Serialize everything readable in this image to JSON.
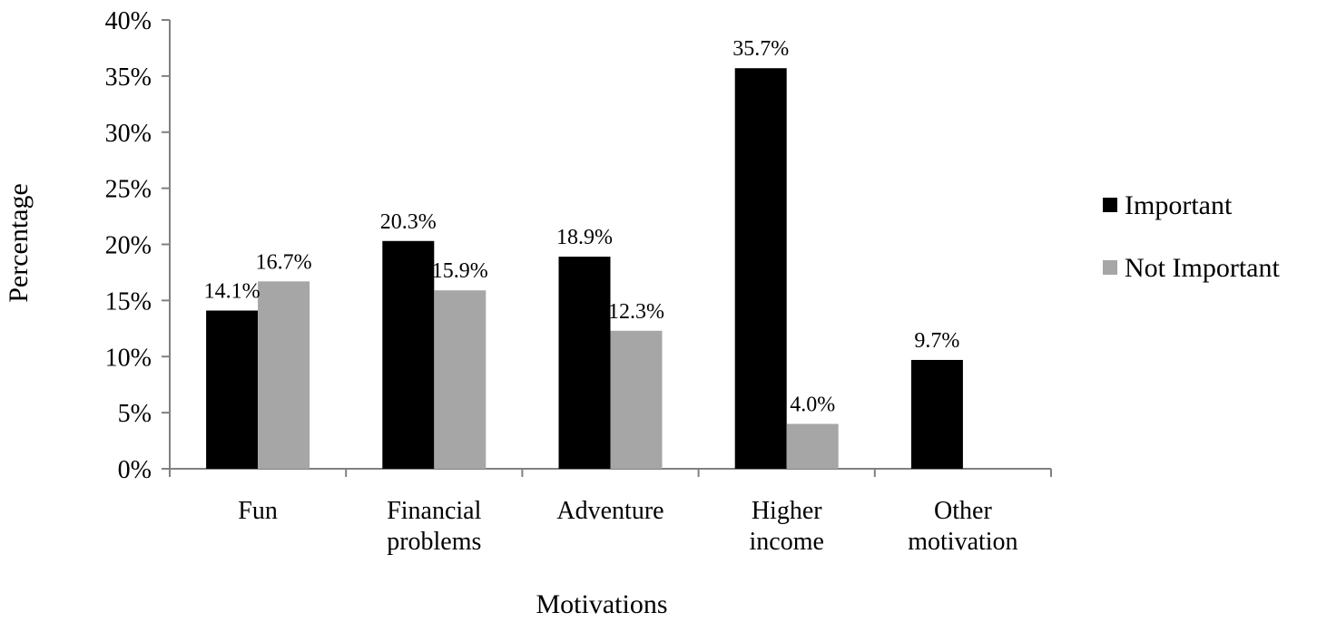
{
  "chart_data": {
    "type": "bar",
    "categories": [
      [
        "Fun"
      ],
      [
        "Financial",
        "problems"
      ],
      [
        "Adventure"
      ],
      [
        "Higher",
        "income"
      ],
      [
        "Other",
        "motivation"
      ]
    ],
    "series": [
      {
        "name": "Important",
        "color": "#000000",
        "values": [
          14.1,
          20.3,
          18.9,
          35.7,
          9.7
        ],
        "labels": [
          "14.1%",
          "20.3%",
          "18.9%",
          "35.7%",
          "9.7%"
        ]
      },
      {
        "name": "Not Important",
        "color": "#a6a6a6",
        "values": [
          16.7,
          15.9,
          12.3,
          4.0,
          null
        ],
        "labels": [
          "16.7%",
          "15.9%",
          "12.3%",
          "4.0%",
          ""
        ]
      }
    ],
    "title": "",
    "xlabel": "Motivations",
    "ylabel": "Percentage",
    "ylim": [
      0,
      40
    ],
    "yticks": [
      {
        "value": 0,
        "label": "0%"
      },
      {
        "value": 5,
        "label": "5%"
      },
      {
        "value": 10,
        "label": "10%"
      },
      {
        "value": 15,
        "label": "15%"
      },
      {
        "value": 20,
        "label": "20%"
      },
      {
        "value": 25,
        "label": "25%"
      },
      {
        "value": 30,
        "label": "30%"
      },
      {
        "value": 35,
        "label": "35%"
      },
      {
        "value": 40,
        "label": "40%"
      }
    ],
    "grid": false,
    "legend_position": "right"
  }
}
